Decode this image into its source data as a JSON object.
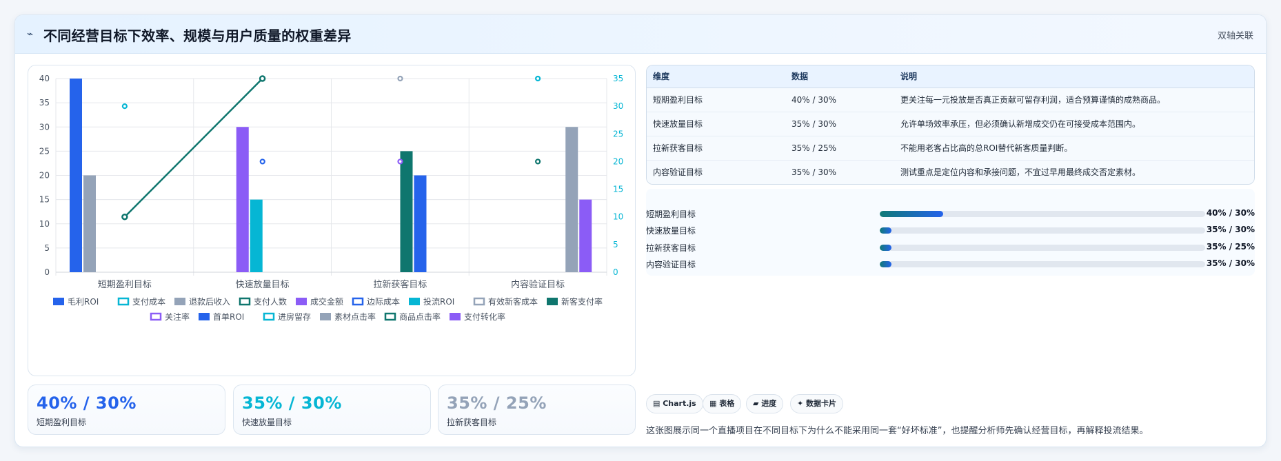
{
  "header": {
    "icon": "sparkle-icon",
    "title": "不同经营目标下效率、规模与用户质量的权重差异",
    "tag": "双轴关联"
  },
  "table": {
    "columns": [
      "维度",
      "数据",
      "说明"
    ],
    "rows": [
      {
        "dimension": "短期盈利目标",
        "data": "40% / 30%",
        "note": "更关注每一元投放是否真正贡献可留存利润，适合预算谨慎的成熟商品。"
      },
      {
        "dimension": "快速放量目标",
        "data": "35% / 30%",
        "note": "允许单场效率承压，但必须确认新增成交仍在可接受成本范围内。"
      },
      {
        "dimension": "拉新获客目标",
        "data": "35% / 25%",
        "note": "不能用老客占比高的总ROI替代新客质量判断。"
      },
      {
        "dimension": "内容验证目标",
        "data": "35% / 30%",
        "note": "测试重点是定位内容和承接问题，不宜过早用最终成交否定素材。"
      }
    ]
  },
  "progress": [
    {
      "label": "短期盈利目标",
      "value": "40% / 30%",
      "fill": 0.195
    },
    {
      "label": "快速放量目标",
      "value": "35% / 30%",
      "fill": 0.037
    },
    {
      "label": "拉新获客目标",
      "value": "35% / 25%",
      "fill": 0.037
    },
    {
      "label": "内容验证目标",
      "value": "35% / 30%",
      "fill": 0.037
    }
  ],
  "stats": [
    {
      "value": "40% / 30%",
      "label": "短期盈利目标",
      "color": "#2563eb"
    },
    {
      "value": "35% / 30%",
      "label": "快速放量目标",
      "color": "#06b6d4"
    },
    {
      "value": "35% / 25%",
      "label": "拉新获客目标",
      "color": "#94a3b8"
    }
  ],
  "chips": [
    {
      "icon": "chart-icon",
      "label": "▤ Chart.js"
    },
    {
      "icon": "table-icon",
      "label": "▦ 表格"
    },
    {
      "icon": "progress-icon",
      "label": "▰ 进度"
    },
    {
      "icon": "card-icon",
      "label": "✦ 数据卡片"
    }
  ],
  "footnote": "这张图展示同一个直播项目在不同目标下为什么不能采用同一套“好坏标准”，也提醒分析师先确认经营目标，再解释投流结果。",
  "chart_data": {
    "type": "bar",
    "categories": [
      "短期盈利目标",
      "快速放量目标",
      "拉新获客目标",
      "内容验证目标"
    ],
    "y_left": {
      "min": 0,
      "max": 40,
      "ticks": [
        0,
        5,
        10,
        15,
        20,
        25,
        30,
        35,
        40
      ]
    },
    "y_right": {
      "min": 0,
      "max": 35,
      "ticks": [
        0,
        5,
        10,
        15,
        20,
        25,
        30,
        35
      ]
    },
    "grid": true,
    "legend_position": "bottom",
    "series": [
      {
        "name": "毛利ROI",
        "type": "bar",
        "axis": "left",
        "color": "#2563eb",
        "legend_style": "solid",
        "values": [
          40,
          null,
          null,
          null
        ]
      },
      {
        "name": "支付成本",
        "type": "point",
        "axis": "right",
        "color": "#06b6d4",
        "legend_style": "outline",
        "values": [
          30,
          null,
          null,
          null
        ]
      },
      {
        "name": "退款后收入",
        "type": "bar",
        "axis": "left",
        "color": "#94a3b8",
        "legend_style": "solid",
        "values": [
          20,
          null,
          null,
          null
        ]
      },
      {
        "name": "支付人数",
        "type": "line",
        "axis": "right",
        "color": "#0f766e",
        "legend_style": "outline",
        "values": [
          10,
          35,
          null,
          null
        ]
      },
      {
        "name": "成交金额",
        "type": "bar",
        "axis": "left",
        "color": "#8b5cf6",
        "legend_style": "solid",
        "values": [
          null,
          30,
          null,
          null
        ]
      },
      {
        "name": "边际成本",
        "type": "point",
        "axis": "right",
        "color": "#2563eb",
        "legend_style": "outline",
        "values": [
          null,
          20,
          null,
          null
        ]
      },
      {
        "name": "投流ROI",
        "type": "bar",
        "axis": "left",
        "color": "#06b6d4",
        "legend_style": "solid",
        "values": [
          null,
          15,
          null,
          null
        ]
      },
      {
        "name": "有效新客成本",
        "type": "point",
        "axis": "right",
        "color": "#94a3b8",
        "legend_style": "outline",
        "values": [
          null,
          null,
          35,
          null
        ]
      },
      {
        "name": "新客支付率",
        "type": "bar",
        "axis": "left",
        "color": "#0f766e",
        "legend_style": "solid",
        "values": [
          null,
          null,
          25,
          null
        ]
      },
      {
        "name": "关注率",
        "type": "point",
        "axis": "right",
        "color": "#8b5cf6",
        "legend_style": "outline",
        "values": [
          null,
          null,
          20,
          null
        ]
      },
      {
        "name": "首单ROI",
        "type": "bar",
        "axis": "left",
        "color": "#2563eb",
        "legend_style": "solid",
        "values": [
          null,
          null,
          20,
          null
        ]
      },
      {
        "name": "进房留存",
        "type": "point",
        "axis": "right",
        "color": "#06b6d4",
        "legend_style": "outline",
        "values": [
          null,
          null,
          null,
          35
        ]
      },
      {
        "name": "素材点击率",
        "type": "bar",
        "axis": "left",
        "color": "#94a3b8",
        "legend_style": "solid",
        "values": [
          null,
          null,
          null,
          30
        ]
      },
      {
        "name": "商品点击率",
        "type": "point",
        "axis": "right",
        "color": "#0f766e",
        "legend_style": "outline",
        "values": [
          null,
          null,
          null,
          20
        ]
      },
      {
        "name": "支付转化率",
        "type": "bar",
        "axis": "left",
        "color": "#8b5cf6",
        "legend_style": "solid",
        "values": [
          null,
          null,
          null,
          15
        ]
      }
    ]
  }
}
